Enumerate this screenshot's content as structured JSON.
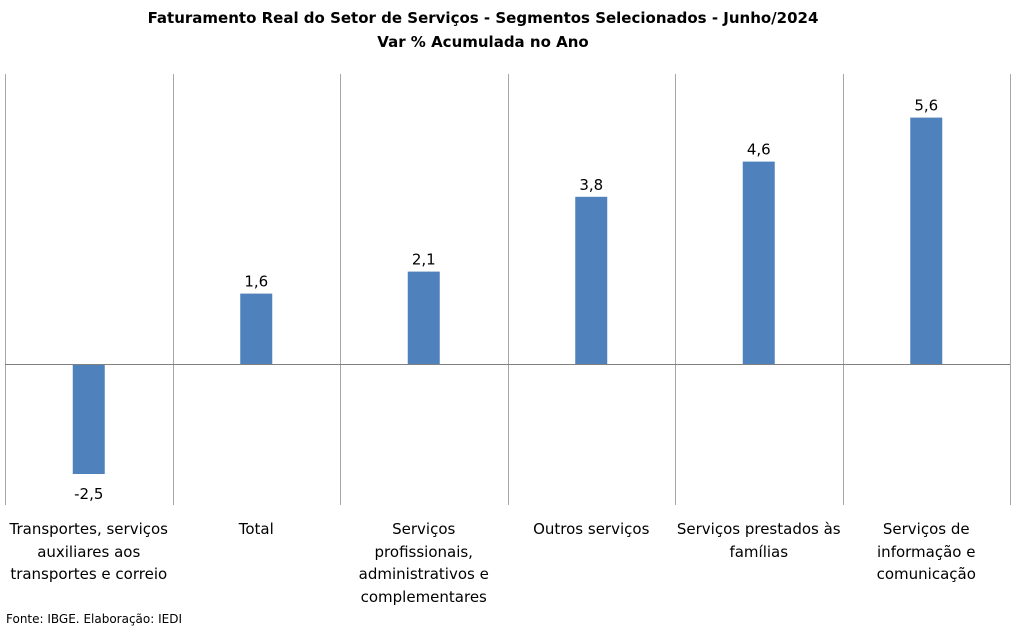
{
  "title": {
    "line1": "Faturamento  Real do Setor de Serviços - Segmentos Selecionados - Junho/2024",
    "line2": "Var % Acumulada no Ano"
  },
  "source": "Fonte: IBGE. Elaboração: IEDI",
  "chart_data": {
    "type": "bar",
    "title": "Faturamento  Real do Setor de Serviços - Segmentos Selecionados - Junho/2024",
    "subtitle": "Var % Acumulada no Ano",
    "categories": [
      "Transportes, serviços auxiliares aos transportes e correio",
      "Total",
      "Serviços profissionais, administrativos e complementares",
      "Outros serviços",
      "Serviços prestados às famílias",
      "Serviços de informação e comunicação"
    ],
    "category_lines": [
      [
        "Transportes, serviços",
        "auxiliares aos",
        "transportes e correio"
      ],
      [
        "Total"
      ],
      [
        "Serviços profissionais,",
        "administrativos e",
        "complementares"
      ],
      [
        "Outros serviços"
      ],
      [
        "Serviços prestados às",
        "famílias"
      ],
      [
        "Serviços de",
        "informação e",
        "comunicação"
      ]
    ],
    "values": [
      -2.5,
      1.6,
      2.1,
      3.8,
      4.6,
      5.6
    ],
    "data_labels": [
      "-2,5",
      "1,6",
      "2,1",
      "3,8",
      "4,6",
      "5,6"
    ],
    "bar_color": "#4F81BD",
    "grid": "vertical category separators",
    "legend": "none",
    "ylim": [
      -3.0,
      6.8
    ]
  }
}
